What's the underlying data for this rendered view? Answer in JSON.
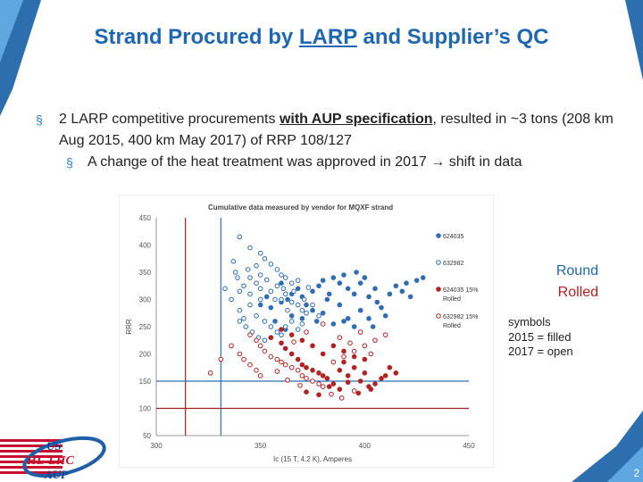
{
  "slide": {
    "title_pre": "Strand Procured by ",
    "title_underlined": "LARP",
    "title_post": " and Supplier’s QC",
    "bullet1_pre": "2 LARP competitive procurements ",
    "bullet1_emph": "with AUP specification",
    "bullet1_post": ", resulted in ~3 tons (208 km Aug 2015, 400 km May 2017) of RRP 108/127",
    "bullet2_pre": "A change of the heat treatment was approved in 2017 ",
    "bullet2_arrow": "→",
    "bullet2_post": " shift in data",
    "bullet_marker": "§",
    "round_label": "Round",
    "rolled_label": "Rolled",
    "symbols_line1": "symbols",
    "symbols_line2": "2015 = filled",
    "symbols_line3": "2017 = open",
    "page_number": "2",
    "logo_text_1": "US",
    "logo_text_2": "HL-LHC",
    "logo_text_3": "AUP",
    "colors": {
      "title": "#1f67b1",
      "blue_points": "#2e6db4",
      "red_points": "#b22222",
      "accent": "#2e7bbf"
    }
  },
  "chart_data": {
    "type": "scatter",
    "title": "Cumulative data measured by vendor for MQXF strand",
    "xlabel": "Ic (15 T, 4.2 K), Amperes",
    "ylabel": "RRR",
    "xlim": [
      300,
      450
    ],
    "ylim": [
      50,
      450
    ],
    "xticks": [
      300,
      350,
      400,
      450
    ],
    "yticks": [
      50,
      100,
      150,
      200,
      250,
      300,
      350,
      400,
      450
    ],
    "grid": false,
    "legend_placement": "right",
    "reference_lines": [
      {
        "axis": "x",
        "value": 314,
        "color": "#a32020"
      },
      {
        "axis": "x",
        "value": 331,
        "color": "#2e6db4"
      },
      {
        "axis": "y",
        "value": 150,
        "color": "#2e6db4"
      },
      {
        "axis": "y",
        "value": 100,
        "color": "#a32020"
      }
    ],
    "series": [
      {
        "name": "624035",
        "color": "#2e6db4",
        "filled": true,
        "points": [
          [
            355,
            285
          ],
          [
            360,
            295
          ],
          [
            363,
            300
          ],
          [
            365,
            310
          ],
          [
            368,
            320
          ],
          [
            370,
            305
          ],
          [
            372,
            290
          ],
          [
            375,
            315
          ],
          [
            378,
            325
          ],
          [
            380,
            335
          ],
          [
            382,
            300
          ],
          [
            385,
            340
          ],
          [
            388,
            330
          ],
          [
            390,
            345
          ],
          [
            392,
            320
          ],
          [
            395,
            310
          ],
          [
            396,
            350
          ],
          [
            398,
            330
          ],
          [
            400,
            340
          ],
          [
            402,
            305
          ],
          [
            405,
            320
          ],
          [
            406,
            295
          ],
          [
            408,
            285
          ],
          [
            410,
            270
          ],
          [
            412,
            310
          ],
          [
            415,
            325
          ],
          [
            418,
            315
          ],
          [
            420,
            330
          ],
          [
            422,
            305
          ],
          [
            425,
            335
          ],
          [
            428,
            340
          ],
          [
            365,
            270
          ],
          [
            370,
            265
          ],
          [
            375,
            280
          ],
          [
            380,
            275
          ],
          [
            385,
            255
          ],
          [
            390,
            260
          ],
          [
            395,
            250
          ],
          [
            398,
            280
          ],
          [
            402,
            265
          ],
          [
            404,
            250
          ],
          [
            360,
            330
          ],
          [
            357,
            260
          ],
          [
            353,
            305
          ],
          [
            350,
            290
          ],
          [
            392,
            265
          ],
          [
            388,
            290
          ],
          [
            383,
            310
          ],
          [
            377,
            260
          ],
          [
            362,
            245
          ]
        ]
      },
      {
        "name": "632982",
        "color": "#2e6db4",
        "filled": false,
        "points": [
          [
            340,
            415
          ],
          [
            345,
            395
          ],
          [
            350,
            385
          ],
          [
            352,
            375
          ],
          [
            355,
            365
          ],
          [
            358,
            355
          ],
          [
            360,
            345
          ],
          [
            362,
            340
          ],
          [
            365,
            330
          ],
          [
            368,
            335
          ],
          [
            350,
            345
          ],
          [
            348,
            330
          ],
          [
            345,
            340
          ],
          [
            342,
            325
          ],
          [
            340,
            315
          ],
          [
            345,
            310
          ],
          [
            350,
            320
          ],
          [
            355,
            315
          ],
          [
            358,
            325
          ],
          [
            360,
            300
          ],
          [
            362,
            310
          ],
          [
            365,
            295
          ],
          [
            368,
            290
          ],
          [
            370,
            280
          ],
          [
            372,
            275
          ],
          [
            375,
            290
          ],
          [
            378,
            270
          ],
          [
            350,
            300
          ],
          [
            345,
            290
          ],
          [
            340,
            280
          ],
          [
            342,
            265
          ],
          [
            348,
            270
          ],
          [
            352,
            260
          ],
          [
            355,
            250
          ],
          [
            358,
            240
          ],
          [
            360,
            235
          ],
          [
            362,
            250
          ],
          [
            365,
            260
          ],
          [
            368,
            245
          ],
          [
            370,
            255
          ],
          [
            340,
            260
          ],
          [
            343,
            250
          ],
          [
            346,
            240
          ],
          [
            349,
            230
          ],
          [
            352,
            225
          ],
          [
            355,
            230
          ],
          [
            357,
            300
          ],
          [
            361,
            320
          ],
          [
            366,
            315
          ],
          [
            371,
            300
          ],
          [
            337,
            370
          ],
          [
            338,
            350
          ],
          [
            344,
            355
          ],
          [
            348,
            362
          ],
          [
            353,
            336
          ],
          [
            363,
            280
          ],
          [
            373,
            322
          ],
          [
            333,
            320
          ],
          [
            336,
            300
          ],
          [
            339,
            340
          ]
        ]
      },
      {
        "name": "624035 15% Rolled",
        "color": "#b22222",
        "filled": true,
        "points": [
          [
            355,
            230
          ],
          [
            360,
            220
          ],
          [
            362,
            210
          ],
          [
            365,
            200
          ],
          [
            368,
            190
          ],
          [
            370,
            180
          ],
          [
            372,
            175
          ],
          [
            375,
            170
          ],
          [
            378,
            165
          ],
          [
            380,
            160
          ],
          [
            382,
            155
          ],
          [
            385,
            145
          ],
          [
            388,
            170
          ],
          [
            390,
            185
          ],
          [
            392,
            160
          ],
          [
            395,
            175
          ],
          [
            398,
            150
          ],
          [
            400,
            165
          ],
          [
            402,
            140
          ],
          [
            405,
            145
          ],
          [
            408,
            155
          ],
          [
            410,
            160
          ],
          [
            412,
            175
          ],
          [
            415,
            165
          ],
          [
            380,
            200
          ],
          [
            375,
            215
          ],
          [
            370,
            225
          ],
          [
            365,
            235
          ],
          [
            360,
            245
          ],
          [
            385,
            215
          ],
          [
            390,
            205
          ],
          [
            395,
            195
          ],
          [
            400,
            190
          ],
          [
            372,
            130
          ],
          [
            378,
            125
          ],
          [
            383,
            140
          ],
          [
            388,
            135
          ],
          [
            392,
            148
          ],
          [
            397,
            128
          ],
          [
            403,
            135
          ]
        ]
      },
      {
        "name": "632982 15% Rolled",
        "color": "#b22222",
        "filled": false,
        "points": [
          [
            345,
            235
          ],
          [
            348,
            225
          ],
          [
            350,
            215
          ],
          [
            352,
            205
          ],
          [
            355,
            195
          ],
          [
            358,
            190
          ],
          [
            360,
            185
          ],
          [
            362,
            180
          ],
          [
            365,
            175
          ],
          [
            368,
            170
          ],
          [
            370,
            160
          ],
          [
            372,
            155
          ],
          [
            375,
            150
          ],
          [
            378,
            145
          ],
          [
            380,
            140
          ],
          [
            385,
            185
          ],
          [
            390,
            195
          ],
          [
            395,
            205
          ],
          [
            400,
            215
          ],
          [
            405,
            225
          ],
          [
            410,
            235
          ],
          [
            345,
            180
          ],
          [
            348,
            170
          ],
          [
            350,
            160
          ],
          [
            340,
            200
          ],
          [
            342,
            190
          ],
          [
            380,
            255
          ],
          [
            372,
            240
          ],
          [
            366,
            222
          ],
          [
            388,
            230
          ],
          [
            393,
            220
          ],
          [
            398,
            240
          ],
          [
            403,
            200
          ],
          [
            336,
            215
          ],
          [
            331,
            190
          ],
          [
            326,
            165
          ],
          [
            358,
            168
          ],
          [
            363,
            152
          ],
          [
            369,
            142
          ],
          [
            384,
            126
          ],
          [
            389,
            119
          ],
          [
            395,
            132
          ]
        ]
      }
    ]
  }
}
